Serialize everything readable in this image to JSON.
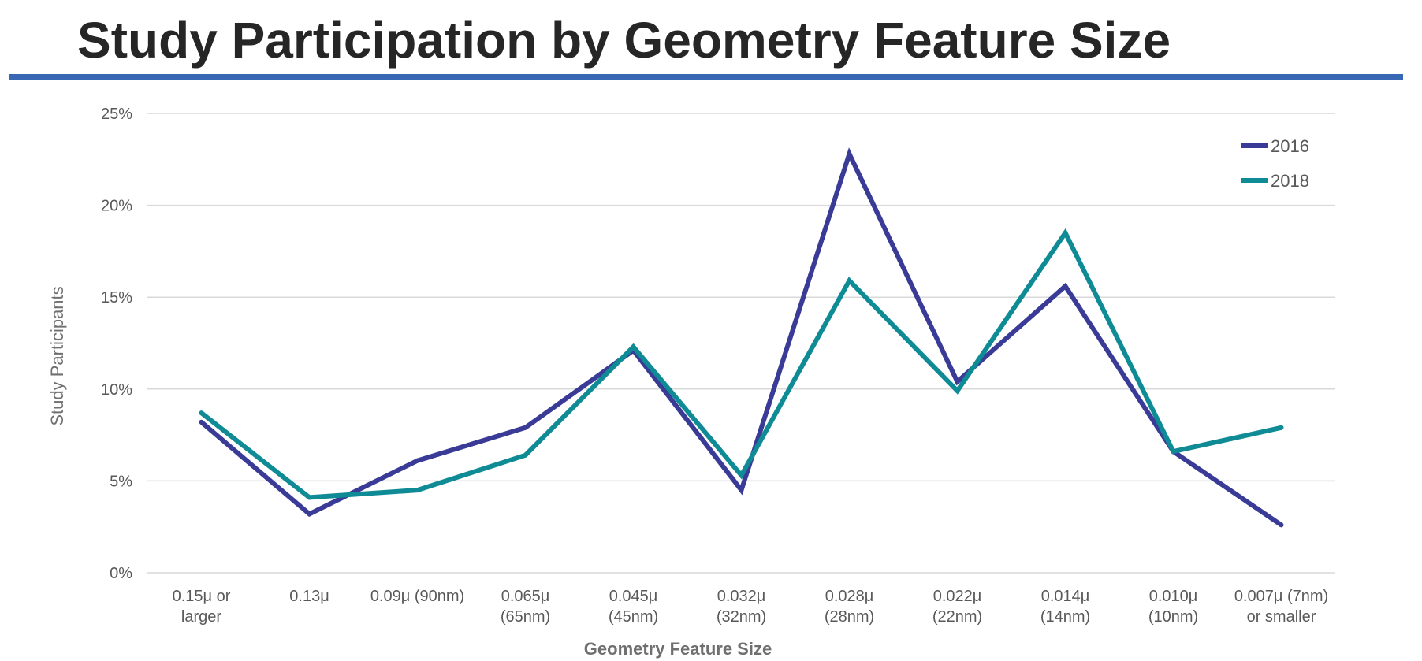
{
  "title": "Study Participation by Geometry Feature Size",
  "colors": {
    "title_rule": "#3868b4",
    "series_2016": "#3a3b96",
    "series_2018": "#0f8b96",
    "gridline": "#d9d9d9"
  },
  "chart_data": {
    "type": "line",
    "xlabel": "Geometry Feature Size",
    "ylabel": "Study Participants",
    "categories": [
      [
        "0.15μ or",
        "larger"
      ],
      [
        "0.13μ"
      ],
      [
        "0.09μ (90nm)"
      ],
      [
        "0.065μ",
        "(65nm)"
      ],
      [
        "0.045μ",
        "(45nm)"
      ],
      [
        "0.032μ",
        "(32nm)"
      ],
      [
        "0.028μ",
        "(28nm)"
      ],
      [
        "0.022μ",
        "(22nm)"
      ],
      [
        "0.014μ",
        "(14nm)"
      ],
      [
        "0.010μ",
        "(10nm)"
      ],
      [
        "0.007μ (7nm)",
        "or smaller"
      ]
    ],
    "y_ticks": [
      "0%",
      "5%",
      "10%",
      "15%",
      "20%",
      "25%"
    ],
    "ylim": [
      0,
      25
    ],
    "y_unit": "%",
    "grid": true,
    "legend_position": "top-right",
    "series": [
      {
        "name": "2016",
        "color": "#3a3b96",
        "values": [
          8.2,
          3.2,
          6.1,
          7.9,
          12.1,
          4.5,
          22.8,
          10.4,
          15.6,
          6.6,
          2.6
        ]
      },
      {
        "name": "2018",
        "color": "#0f8b96",
        "values": [
          8.7,
          4.1,
          4.5,
          6.4,
          12.3,
          5.3,
          15.9,
          9.9,
          18.5,
          6.6,
          7.9
        ]
      }
    ]
  }
}
